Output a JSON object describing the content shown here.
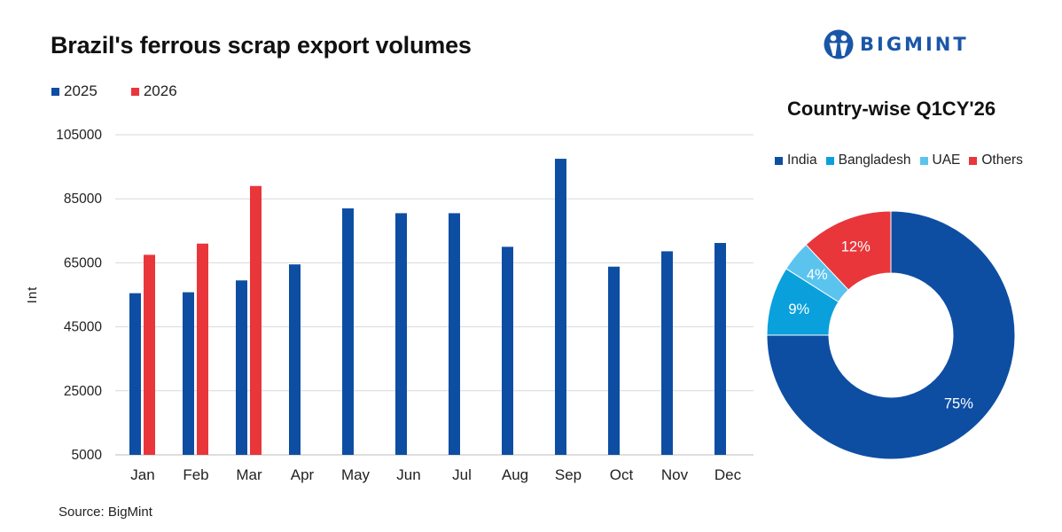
{
  "brand": {
    "name": "BIGMINT",
    "color": "#1a56a8"
  },
  "source": "Source: BigMint",
  "chart_data": [
    {
      "type": "bar",
      "title": "Brazil's ferrous scrap export volumes",
      "ylabel": "Int",
      "xlabel": "",
      "ylim": [
        5000,
        105000
      ],
      "yticks": [
        5000,
        25000,
        45000,
        65000,
        85000,
        105000
      ],
      "grid": true,
      "legend_position": "top-left",
      "categories": [
        "Jan",
        "Feb",
        "Mar",
        "Apr",
        "May",
        "Jun",
        "Jul",
        "Aug",
        "Sep",
        "Oct",
        "Nov",
        "Dec"
      ],
      "series": [
        {
          "name": "2025",
          "color": "#0d4ea3",
          "values": [
            55500,
            55800,
            59500,
            64500,
            82000,
            80500,
            80500,
            70000,
            97500,
            63800,
            68600,
            71200
          ]
        },
        {
          "name": "2026",
          "color": "#e8363a",
          "values": [
            67500,
            71000,
            89000,
            null,
            null,
            null,
            null,
            null,
            null,
            null,
            null,
            null
          ]
        }
      ]
    },
    {
      "type": "pie",
      "subtype": "donut",
      "title": "Country-wise Q1CY'26",
      "legend_position": "top",
      "slices": [
        {
          "label": "India",
          "value": 75,
          "text": "75%",
          "color": "#0d4ea3"
        },
        {
          "label": "Bangladesh",
          "value": 9,
          "text": "9%",
          "color": "#0aa0dc"
        },
        {
          "label": "UAE",
          "value": 4,
          "text": "4%",
          "color": "#5bc4ee"
        },
        {
          "label": "Others",
          "value": 12,
          "text": "12%",
          "color": "#e8363a"
        }
      ]
    }
  ]
}
